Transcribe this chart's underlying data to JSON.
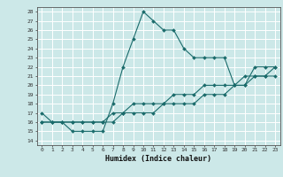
{
  "title": "",
  "xlabel": "Humidex (Indice chaleur)",
  "bg_color": "#cce8e8",
  "grid_color": "#ffffff",
  "line_color": "#1a6b6b",
  "xlim": [
    -0.5,
    23.5
  ],
  "ylim": [
    13.5,
    28.5
  ],
  "yticks": [
    14,
    15,
    16,
    17,
    18,
    19,
    20,
    21,
    22,
    23,
    24,
    25,
    26,
    27,
    28
  ],
  "xticks": [
    0,
    1,
    2,
    3,
    4,
    5,
    6,
    7,
    8,
    9,
    10,
    11,
    12,
    13,
    14,
    15,
    16,
    17,
    18,
    19,
    20,
    21,
    22,
    23
  ],
  "line1_x": [
    0,
    1,
    2,
    3,
    4,
    5,
    6,
    7,
    8,
    9,
    10,
    11,
    12,
    13,
    14,
    15,
    16,
    17,
    18,
    19,
    20,
    21,
    22,
    23
  ],
  "line1_y": [
    17,
    16,
    16,
    15,
    15,
    15,
    15,
    18,
    22,
    25,
    28,
    27,
    26,
    26,
    24,
    23,
    23,
    23,
    23,
    20,
    20,
    22,
    22,
    22
  ],
  "line2_x": [
    0,
    1,
    2,
    3,
    4,
    5,
    6,
    7,
    8,
    9,
    10,
    11,
    12,
    13,
    14,
    15,
    16,
    17,
    18,
    19,
    20,
    21,
    22,
    23
  ],
  "line2_y": [
    16,
    16,
    16,
    16,
    16,
    16,
    16,
    16,
    17,
    17,
    17,
    17,
    18,
    18,
    18,
    18,
    19,
    19,
    19,
    20,
    20,
    21,
    21,
    21
  ],
  "line3_x": [
    0,
    1,
    2,
    3,
    4,
    5,
    6,
    7,
    8,
    9,
    10,
    11,
    12,
    13,
    14,
    15,
    16,
    17,
    18,
    19,
    20,
    21,
    22,
    23
  ],
  "line3_y": [
    16,
    16,
    16,
    16,
    16,
    16,
    16,
    17,
    17,
    18,
    18,
    18,
    18,
    19,
    19,
    19,
    20,
    20,
    20,
    20,
    21,
    21,
    21,
    22
  ],
  "xlabel_fontsize": 6,
  "tick_fontsize": 4.5,
  "marker_size": 2.0,
  "linewidth": 0.8
}
